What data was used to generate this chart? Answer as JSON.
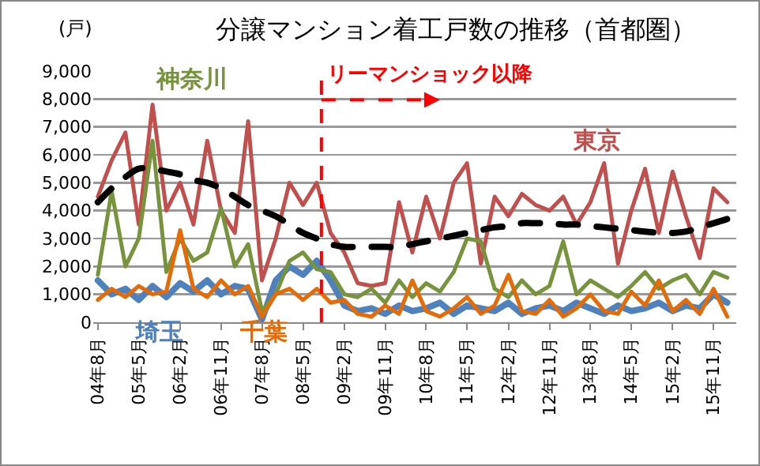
{
  "chart_data": {
    "type": "line",
    "title": "分譲マンション着工戸数の推移（首都圏）",
    "ylabel": "(戸)",
    "x": [
      "2004-08",
      "2004-11",
      "2005-02",
      "2005-05",
      "2005-08",
      "2005-11",
      "2006-02",
      "2006-05",
      "2006-08",
      "2006-11",
      "2007-02",
      "2007-05",
      "2007-08",
      "2007-11",
      "2008-02",
      "2008-05",
      "2008-08",
      "2008-11",
      "2009-02",
      "2009-05",
      "2009-08",
      "2009-11",
      "2010-02",
      "2010-05",
      "2010-08",
      "2010-11",
      "2011-02",
      "2011-05",
      "2011-08",
      "2011-11",
      "2012-02",
      "2012-05",
      "2012-08",
      "2012-11",
      "2013-02",
      "2013-05",
      "2013-08",
      "2013-11",
      "2014-02",
      "2014-05",
      "2014-08",
      "2014-11",
      "2015-02",
      "2015-05",
      "2015-08",
      "2015-11",
      "2016-02"
    ],
    "xlim": [
      "2004-07",
      "2016-04"
    ],
    "xticks": [
      {
        "value": "2004-08",
        "label": "04年8月"
      },
      {
        "value": "2005-05",
        "label": "05年5月"
      },
      {
        "value": "2006-02",
        "label": "06年2月"
      },
      {
        "value": "2006-11",
        "label": "06年11月"
      },
      {
        "value": "2007-08",
        "label": "07年8月"
      },
      {
        "value": "2008-05",
        "label": "08年5月"
      },
      {
        "value": "2009-02",
        "label": "09年2月"
      },
      {
        "value": "2009-11",
        "label": "09年11月"
      },
      {
        "value": "2010-08",
        "label": "10年8月"
      },
      {
        "value": "2011-05",
        "label": "11年5月"
      },
      {
        "value": "2012-02",
        "label": "12年2月"
      },
      {
        "value": "2012-11",
        "label": "12年11月"
      },
      {
        "value": "2013-08",
        "label": "13年8月"
      },
      {
        "value": "2014-05",
        "label": "14年5月"
      },
      {
        "value": "2015-02",
        "label": "15年2月"
      },
      {
        "value": "2015-11",
        "label": "15年11月"
      }
    ],
    "ylim": [
      0,
      9000
    ],
    "yticks": [
      0,
      {
        "value": 1000,
        "label": "1,000"
      },
      {
        "value": 2000,
        "label": "2,000"
      },
      {
        "value": 3000,
        "label": "3,000"
      },
      {
        "value": 4000,
        "label": "4,000"
      },
      {
        "value": 5000,
        "label": "5,000"
      },
      {
        "value": 6000,
        "label": "6,000"
      },
      {
        "value": 7000,
        "label": "7,000"
      },
      {
        "value": 8000,
        "label": "8,000"
      },
      {
        "value": 9000,
        "label": "9,000"
      }
    ],
    "grid": "y",
    "legend": false,
    "marker": "none",
    "series": [
      {
        "name": "東京",
        "color": "#c0504d",
        "values": [
          4500,
          5800,
          6800,
          3500,
          7800,
          4000,
          5000,
          3500,
          6500,
          4000,
          3200,
          7200,
          1500,
          3000,
          5000,
          4200,
          5000,
          3200,
          2500,
          1400,
          1300,
          1400,
          4300,
          2500,
          4500,
          3000,
          5000,
          5700,
          2100,
          4500,
          3800,
          4600,
          4200,
          4000,
          4500,
          3500,
          4300,
          5700,
          2100,
          4000,
          5500,
          3200,
          5400,
          3800,
          2300,
          4800,
          4300
        ]
      },
      {
        "name": "埼玉",
        "color": "#4f81bd",
        "values": [
          1500,
          1000,
          1200,
          800,
          1300,
          900,
          1400,
          1100,
          1500,
          1000,
          1300,
          1200,
          100,
          1500,
          2000,
          1700,
          2200,
          1500,
          600,
          400,
          500,
          300,
          600,
          400,
          500,
          700,
          300,
          600,
          500,
          400,
          700,
          300,
          500,
          600,
          400,
          700,
          500,
          300,
          600,
          400,
          500,
          700,
          400,
          600,
          500,
          1000,
          700
        ]
      },
      {
        "name": "神奈川",
        "color": "#77933c",
        "values": [
          1700,
          4700,
          2000,
          3000,
          6500,
          1800,
          3000,
          2200,
          2500,
          4100,
          2000,
          2800,
          400,
          1000,
          2200,
          2500,
          1900,
          1800,
          1000,
          900,
          1200,
          700,
          1500,
          900,
          1400,
          1100,
          1800,
          3000,
          2900,
          1200,
          900,
          1500,
          1000,
          1300,
          2900,
          1000,
          1500,
          1200,
          900,
          1300,
          1800,
          1200,
          1500,
          1700,
          1000,
          1800,
          1600
        ]
      },
      {
        "name": "千葉",
        "color": "#e36c09",
        "values": [
          800,
          1200,
          900,
          1300,
          1000,
          1100,
          3300,
          1200,
          900,
          1500,
          1000,
          1300,
          200,
          1000,
          1200,
          800,
          1200,
          700,
          800,
          300,
          200,
          600,
          300,
          1500,
          400,
          200,
          500,
          900,
          300,
          600,
          1700,
          400,
          300,
          800,
          200,
          500,
          1000,
          400,
          300,
          1100,
          600,
          1500,
          400,
          800,
          300,
          1200,
          200
        ]
      },
      {
        "type": "line",
        "color": "#000000",
        "line_style": "dashed",
        "values": [
          4300,
          4800,
          5200,
          5500,
          5500,
          5400,
          5300,
          5100,
          5000,
          4800,
          4500,
          4200,
          4000,
          3800,
          3500,
          3200,
          3000,
          2800,
          2700,
          2700,
          2700,
          2700,
          2700,
          2800,
          2900,
          3000,
          3100,
          3200,
          3300,
          3400,
          3450,
          3550,
          3550,
          3550,
          3500,
          3500,
          3450,
          3400,
          3350,
          3300,
          3250,
          3200,
          3200,
          3250,
          3400,
          3550,
          3700
        ]
      }
    ],
    "ref_lines": [
      {
        "axis": "x",
        "value": "2008-09",
        "label": "リーマンショック以降",
        "color": "#ff0000",
        "line_style": "dashed"
      }
    ]
  }
}
